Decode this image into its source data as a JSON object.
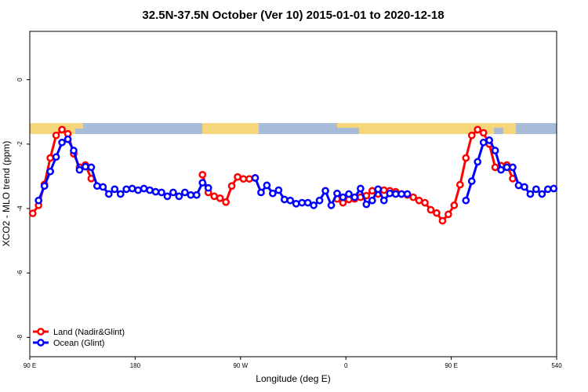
{
  "chart_data": {
    "type": "line",
    "title": "32.5N-37.5N October (Ver 10)   2015-01-01 to 2020-12-18",
    "xlabel": "Longitude (deg E)",
    "ylabel": "XCO2 - MLO trend (ppm)",
    "x": [
      92.5,
      97.5,
      102.5,
      107.5,
      112.5,
      117.5,
      122.5,
      127.5,
      132.5,
      137.5,
      142.5,
      147.5,
      152.5,
      157.5,
      162.5,
      167.5,
      172.5,
      177.5,
      182.5,
      187.5,
      192.5,
      197.5,
      202.5,
      207.5,
      212.5,
      217.5,
      222.5,
      227.5,
      232.5,
      237.5,
      242.5,
      247.5,
      252.5,
      257.5,
      262.5,
      267.5,
      272.5,
      277.5,
      282.5,
      287.5,
      292.5,
      297.5,
      302.5,
      307.5,
      312.5,
      317.5,
      322.5,
      327.5,
      332.5,
      337.5,
      342.5,
      347.5,
      352.5,
      357.5,
      362.5,
      367.5,
      372.5,
      377.5,
      382.5,
      387.5,
      392.5,
      397.5,
      402.5,
      407.5,
      412.5,
      417.5,
      422.5,
      427.5,
      432.5,
      437.5,
      442.5,
      447.5,
      452.5,
      457.5,
      462.5,
      467.5,
      472.5,
      477.5,
      482.5,
      487.5,
      492.5,
      497.5,
      502.5,
      507.5,
      512.5,
      517.5,
      522.5,
      527.5,
      532.5,
      537.5
    ],
    "series": [
      {
        "name": "Land (Nadir&Glint)",
        "color": "#ff0000",
        "values": [
          -4.15,
          -3.9,
          -3.25,
          -2.43,
          -1.73,
          -1.55,
          -1.68,
          -2.3,
          -2.72,
          -2.65,
          -3.07,
          null,
          null,
          null,
          null,
          null,
          null,
          null,
          null,
          null,
          null,
          null,
          null,
          null,
          null,
          null,
          null,
          null,
          null,
          -2.95,
          -3.5,
          -3.62,
          -3.68,
          -3.8,
          -3.3,
          -3.02,
          -3.08,
          -3.08,
          -3.05,
          null,
          null,
          null,
          null,
          null,
          null,
          null,
          null,
          null,
          null,
          null,
          null,
          null,
          -3.7,
          -3.82,
          -3.72,
          -3.7,
          -3.65,
          -3.6,
          -3.45,
          -3.55,
          -3.43,
          -3.45,
          -3.48,
          -3.55,
          -3.58,
          -3.65,
          -3.75,
          -3.82,
          -4.04,
          -4.14,
          -4.38,
          -4.18,
          -3.9,
          -3.26,
          -2.43,
          -1.73,
          -1.55,
          -1.65,
          -2.0,
          -2.72,
          -2.67,
          -2.65,
          -3.07,
          null,
          null,
          null,
          null,
          null,
          null,
          null
        ]
      },
      {
        "name": "Ocean (Glint)",
        "color": "#0000ff",
        "values": [
          null,
          -3.75,
          -3.3,
          -2.85,
          -2.4,
          -1.95,
          -1.85,
          -2.2,
          -2.8,
          -2.7,
          -2.72,
          -3.3,
          -3.33,
          -3.55,
          -3.4,
          -3.55,
          -3.4,
          -3.38,
          -3.43,
          -3.38,
          -3.43,
          -3.48,
          -3.5,
          -3.62,
          -3.5,
          -3.62,
          -3.5,
          -3.58,
          -3.58,
          -3.2,
          -3.36,
          null,
          null,
          null,
          null,
          null,
          null,
          null,
          -3.05,
          -3.5,
          -3.28,
          -3.53,
          -3.43,
          -3.72,
          -3.75,
          -3.85,
          -3.82,
          -3.82,
          -3.9,
          -3.75,
          -3.45,
          -3.9,
          -3.53,
          -3.65,
          -3.55,
          -3.65,
          -3.38,
          -3.87,
          -3.75,
          -3.4,
          -3.75,
          -3.53,
          -3.55,
          -3.55,
          -3.55,
          null,
          null,
          null,
          null,
          null,
          null,
          null,
          null,
          null,
          -3.75,
          -3.15,
          -2.55,
          -1.95,
          -1.88,
          -2.2,
          -2.8,
          -2.72,
          -2.72,
          -3.28,
          -3.33,
          -3.55,
          -3.4,
          -3.55,
          -3.4,
          -3.38
        ]
      }
    ],
    "xlim": [
      90,
      540
    ],
    "xticks": [
      {
        "value": 90,
        "label": "90 E"
      },
      180,
      {
        "value": 270,
        "label": "90 W"
      },
      {
        "value": 360,
        "label": "0"
      },
      {
        "value": 450,
        "label": "90 E"
      },
      540
    ],
    "ylim": [
      -8.6,
      1.5
    ],
    "yticks": [
      0,
      -2,
      -4,
      -6,
      -8
    ],
    "legend": "bottom-left"
  }
}
